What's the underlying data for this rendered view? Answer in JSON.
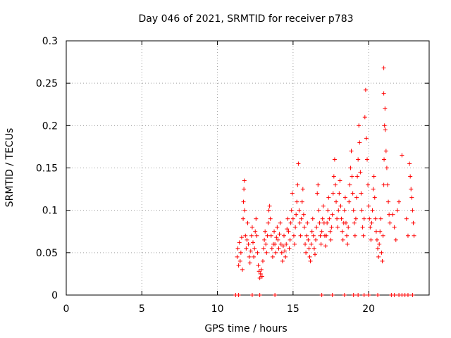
{
  "chart_data": {
    "type": "scatter",
    "title": "Day 046 of 2021, SRMTID for receiver p783",
    "xlabel": "GPS time / hours",
    "ylabel": "SRMTID / TECUs",
    "xlim": [
      0,
      24
    ],
    "ylim": [
      0,
      0.3
    ],
    "x_ticks": [
      "0",
      "5",
      "10",
      "15",
      "20"
    ],
    "x_tick_values": [
      0,
      5,
      10,
      15,
      20
    ],
    "y_ticks": [
      "0",
      "0.05",
      "0.1",
      "0.15",
      "0.2",
      "0.25",
      "0.3"
    ],
    "y_tick_values": [
      0,
      0.05,
      0.1,
      0.15,
      0.2,
      0.25,
      0.3
    ],
    "grid": true,
    "marker": "+",
    "series": [
      {
        "name": "SRMTID",
        "color": "#ff0000",
        "points": [
          [
            11.3,
            0.045
          ],
          [
            11.35,
            0.055
          ],
          [
            11.4,
            0.035
          ],
          [
            11.45,
            0.062
          ],
          [
            11.5,
            0.04
          ],
          [
            11.55,
            0.05
          ],
          [
            11.6,
            0.068
          ],
          [
            11.65,
            0.03
          ],
          [
            11.7,
            0.09
          ],
          [
            11.72,
            0.11
          ],
          [
            11.75,
            0.125
          ],
          [
            11.78,
            0.135
          ],
          [
            11.8,
            0.1
          ],
          [
            11.85,
            0.07
          ],
          [
            11.9,
            0.055
          ],
          [
            11.95,
            0.065
          ],
          [
            12.0,
            0.085
          ],
          [
            12.05,
            0.06
          ],
          [
            12.1,
            0.045
          ],
          [
            12.15,
            0.038
          ],
          [
            12.2,
            0.052
          ],
          [
            12.25,
            0.07
          ],
          [
            12.3,
            0.08
          ],
          [
            12.35,
            0.062
          ],
          [
            12.4,
            0.045
          ],
          [
            12.45,
            0.055
          ],
          [
            12.5,
            0.075
          ],
          [
            12.55,
            0.09
          ],
          [
            12.6,
            0.07
          ],
          [
            12.65,
            0.05
          ],
          [
            12.7,
            0.035
          ],
          [
            12.75,
            0.028
          ],
          [
            12.8,
            0.02
          ],
          [
            12.85,
            0.025
          ],
          [
            12.9,
            0.03
          ],
          [
            12.95,
            0.022
          ],
          [
            13.0,
            0.04
          ],
          [
            13.05,
            0.055
          ],
          [
            13.1,
            0.065
          ],
          [
            13.15,
            0.075
          ],
          [
            13.2,
            0.06
          ],
          [
            13.25,
            0.05
          ],
          [
            13.3,
            0.07
          ],
          [
            13.35,
            0.085
          ],
          [
            13.4,
            0.1
          ],
          [
            13.45,
            0.105
          ],
          [
            13.5,
            0.09
          ],
          [
            13.55,
            0.07
          ],
          [
            13.6,
            0.055
          ],
          [
            13.65,
            0.045
          ],
          [
            13.7,
            0.06
          ],
          [
            13.75,
            0.075
          ],
          [
            13.8,
            0.06
          ],
          [
            13.85,
            0.05
          ],
          [
            13.9,
            0.068
          ],
          [
            13.95,
            0.08
          ],
          [
            14.0,
            0.065
          ],
          [
            14.05,
            0.055
          ],
          [
            14.1,
            0.072
          ],
          [
            14.15,
            0.085
          ],
          [
            14.2,
            0.06
          ],
          [
            14.25,
            0.05
          ],
          [
            14.3,
            0.04
          ],
          [
            14.35,
            0.058
          ],
          [
            14.4,
            0.07
          ],
          [
            14.45,
            0.052
          ],
          [
            14.5,
            0.045
          ],
          [
            14.55,
            0.06
          ],
          [
            14.6,
            0.078
          ],
          [
            14.65,
            0.09
          ],
          [
            14.7,
            0.075
          ],
          [
            14.75,
            0.055
          ],
          [
            14.8,
            0.065
          ],
          [
            14.85,
            0.085
          ],
          [
            14.9,
            0.1
          ],
          [
            14.95,
            0.12
          ],
          [
            15.0,
            0.09
          ],
          [
            15.05,
            0.07
          ],
          [
            15.1,
            0.06
          ],
          [
            15.15,
            0.08
          ],
          [
            15.2,
            0.095
          ],
          [
            15.25,
            0.11
          ],
          [
            15.3,
            0.13
          ],
          [
            15.35,
            0.155
          ],
          [
            15.4,
            0.1
          ],
          [
            15.45,
            0.085
          ],
          [
            15.5,
            0.07
          ],
          [
            15.55,
            0.09
          ],
          [
            15.6,
            0.11
          ],
          [
            15.65,
            0.125
          ],
          [
            15.7,
            0.095
          ],
          [
            15.75,
            0.08
          ],
          [
            15.8,
            0.06
          ],
          [
            15.85,
            0.05
          ],
          [
            15.9,
            0.07
          ],
          [
            15.95,
            0.085
          ],
          [
            16.0,
            0.065
          ],
          [
            16.05,
            0.055
          ],
          [
            16.1,
            0.045
          ],
          [
            16.15,
            0.04
          ],
          [
            16.2,
            0.06
          ],
          [
            16.25,
            0.075
          ],
          [
            16.3,
            0.09
          ],
          [
            16.35,
            0.07
          ],
          [
            16.4,
            0.055
          ],
          [
            16.45,
            0.048
          ],
          [
            16.5,
            0.065
          ],
          [
            16.55,
            0.08
          ],
          [
            16.6,
            0.12
          ],
          [
            16.65,
            0.13
          ],
          [
            16.7,
            0.1
          ],
          [
            16.75,
            0.085
          ],
          [
            16.8,
            0.07
          ],
          [
            16.85,
            0.06
          ],
          [
            16.9,
            0.075
          ],
          [
            16.95,
            0.09
          ],
          [
            17.0,
            0.105
          ],
          [
            17.05,
            0.085
          ],
          [
            17.1,
            0.07
          ],
          [
            17.15,
            0.058
          ],
          [
            17.2,
            0.07
          ],
          [
            17.25,
            0.085
          ],
          [
            17.3,
            0.1
          ],
          [
            17.35,
            0.115
          ],
          [
            17.4,
            0.09
          ],
          [
            17.45,
            0.075
          ],
          [
            17.5,
            0.065
          ],
          [
            17.55,
            0.08
          ],
          [
            17.6,
            0.095
          ],
          [
            17.65,
            0.12
          ],
          [
            17.7,
            0.14
          ],
          [
            17.75,
            0.16
          ],
          [
            17.8,
            0.13
          ],
          [
            17.85,
            0.11
          ],
          [
            17.9,
            0.09
          ],
          [
            17.95,
            0.08
          ],
          [
            18.0,
            0.1
          ],
          [
            18.05,
            0.12
          ],
          [
            18.1,
            0.135
          ],
          [
            18.15,
            0.105
          ],
          [
            18.2,
            0.09
          ],
          [
            18.25,
            0.075
          ],
          [
            18.3,
            0.065
          ],
          [
            18.35,
            0.085
          ],
          [
            18.4,
            0.1
          ],
          [
            18.45,
            0.115
          ],
          [
            18.5,
            0.085
          ],
          [
            18.55,
            0.07
          ],
          [
            18.6,
            0.06
          ],
          [
            18.65,
            0.08
          ],
          [
            18.7,
            0.11
          ],
          [
            18.75,
            0.13
          ],
          [
            18.8,
            0.15
          ],
          [
            18.85,
            0.17
          ],
          [
            18.9,
            0.14
          ],
          [
            18.95,
            0.12
          ],
          [
            19.0,
            0.1
          ],
          [
            19.05,
            0.085
          ],
          [
            19.1,
            0.07
          ],
          [
            19.15,
            0.09
          ],
          [
            19.2,
            0.115
          ],
          [
            19.25,
            0.14
          ],
          [
            19.3,
            0.16
          ],
          [
            19.35,
            0.2
          ],
          [
            19.4,
            0.18
          ],
          [
            19.45,
            0.145
          ],
          [
            19.5,
            0.12
          ],
          [
            19.55,
            0.1
          ],
          [
            19.6,
            0.08
          ],
          [
            19.65,
            0.07
          ],
          [
            19.7,
            0.09
          ],
          [
            19.75,
            0.21
          ],
          [
            19.8,
            0.242
          ],
          [
            19.85,
            0.185
          ],
          [
            19.9,
            0.16
          ],
          [
            19.95,
            0.13
          ],
          [
            20.0,
            0.105
          ],
          [
            20.05,
            0.09
          ],
          [
            20.1,
            0.08
          ],
          [
            20.15,
            0.065
          ],
          [
            20.2,
            0.085
          ],
          [
            20.25,
            0.1
          ],
          [
            20.3,
            0.125
          ],
          [
            20.35,
            0.14
          ],
          [
            20.4,
            0.115
          ],
          [
            20.45,
            0.09
          ],
          [
            20.5,
            0.075
          ],
          [
            20.55,
            0.065
          ],
          [
            20.6,
            0.055
          ],
          [
            20.65,
            0.045
          ],
          [
            20.7,
            0.06
          ],
          [
            20.75,
            0.075
          ],
          [
            20.8,
            0.09
          ],
          [
            20.85,
            0.05
          ],
          [
            20.9,
            0.04
          ],
          [
            20.95,
            0.07
          ],
          [
            21.0,
            0.13
          ],
          [
            21.02,
            0.16
          ],
          [
            21.05,
            0.2
          ],
          [
            21.08,
            0.22
          ],
          [
            21.1,
            0.195
          ],
          [
            21.15,
            0.17
          ],
          [
            21.2,
            0.15
          ],
          [
            21.25,
            0.13
          ],
          [
            21.3,
            0.11
          ],
          [
            21.35,
            0.095
          ],
          [
            21.4,
            0.085
          ],
          [
            21.6,
            0.095
          ],
          [
            21.7,
            0.08
          ],
          [
            21.8,
            0.065
          ],
          [
            21.9,
            0.1
          ],
          [
            22.0,
            0.11
          ],
          [
            22.2,
            0.165
          ],
          [
            22.5,
            0.09
          ],
          [
            22.6,
            0.07
          ],
          [
            22.7,
            0.155
          ],
          [
            22.75,
            0.14
          ],
          [
            22.8,
            0.125
          ],
          [
            22.85,
            0.115
          ],
          [
            22.9,
            0.1
          ],
          [
            22.95,
            0.085
          ],
          [
            23.0,
            0.07
          ],
          [
            11.2,
            0.0
          ],
          [
            11.4,
            0.0
          ],
          [
            12.3,
            0.0
          ],
          [
            12.8,
            0.0
          ],
          [
            13.8,
            0.0
          ],
          [
            16.9,
            0.0
          ],
          [
            17.6,
            0.0
          ],
          [
            18.4,
            0.0
          ],
          [
            19.0,
            0.0
          ],
          [
            19.3,
            0.0
          ],
          [
            19.7,
            0.0
          ],
          [
            20.0,
            0.0
          ],
          [
            20.6,
            0.0
          ],
          [
            21.5,
            0.0
          ],
          [
            21.7,
            0.0
          ],
          [
            22.0,
            0.0
          ],
          [
            22.2,
            0.0
          ],
          [
            22.4,
            0.0
          ],
          [
            22.6,
            0.0
          ],
          [
            22.9,
            0.0
          ],
          [
            21.0,
            0.268
          ],
          [
            21.0,
            0.238
          ]
        ]
      }
    ]
  }
}
